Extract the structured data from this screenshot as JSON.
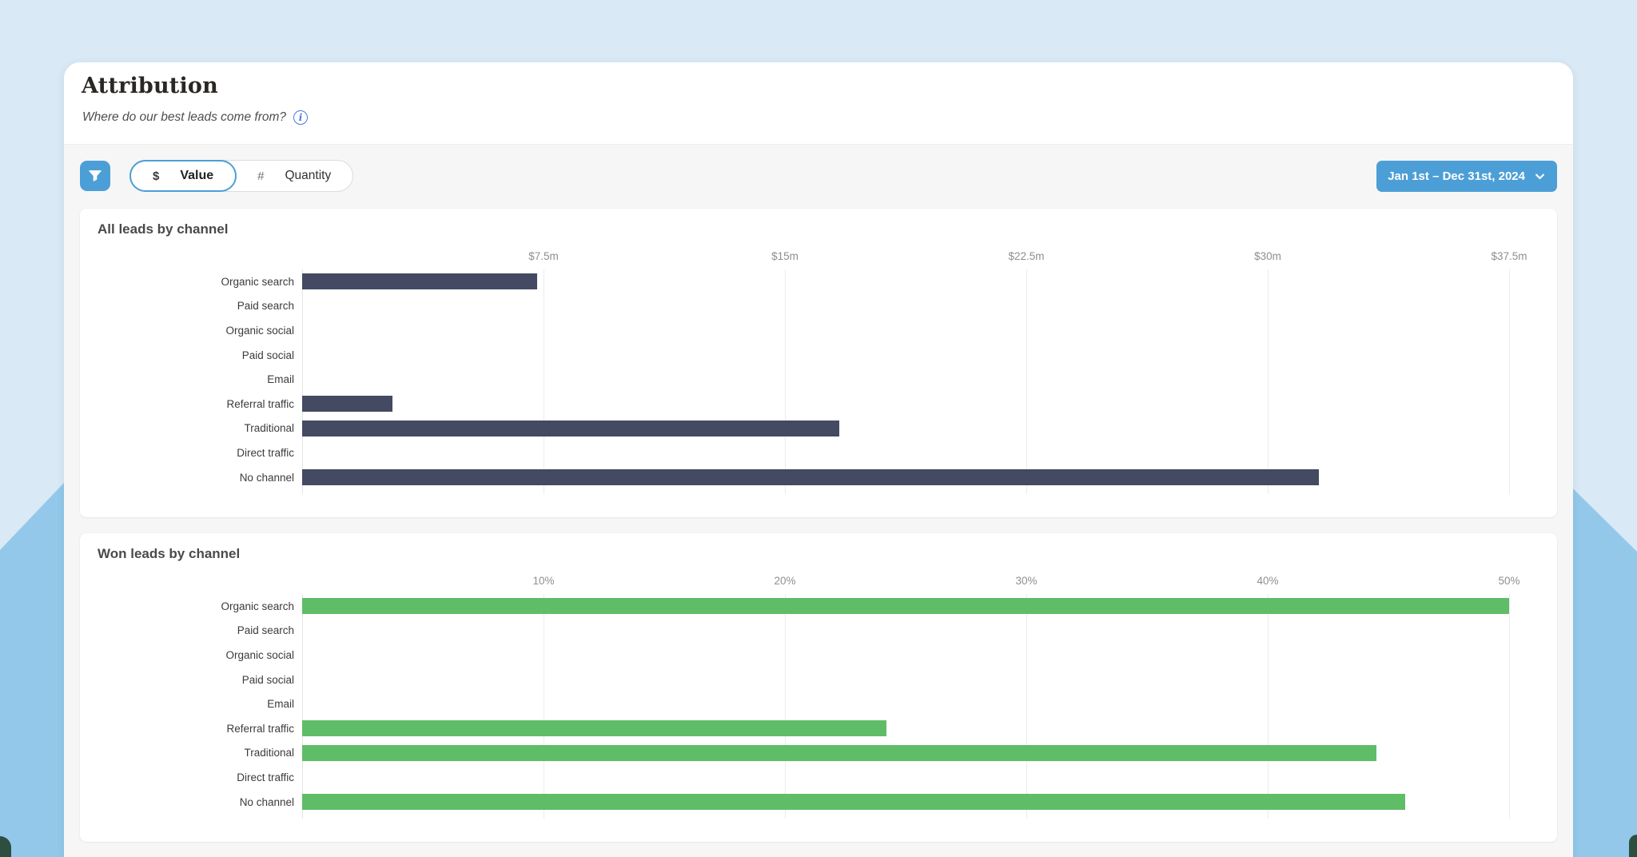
{
  "header": {
    "title": "Attribution",
    "subtitle": "Where do our best leads come from?",
    "info_icon": "info-circle-icon"
  },
  "toolbar": {
    "filter_icon": "funnel-icon",
    "metric_toggle": {
      "options": [
        {
          "symbol": "$",
          "label": "Value",
          "selected": true
        },
        {
          "symbol": "#",
          "label": "Quantity",
          "selected": false
        }
      ]
    },
    "date_range": {
      "label": "Jan 1st – Dec 31st, 2024",
      "icon": "chevron-down-icon"
    }
  },
  "colors": {
    "accent_blue": "#4c9fd6",
    "info_icon_blue": "#4b79d9",
    "page_background_blue": "#d9e9f5",
    "corner_shape_blue": "#93c8ea",
    "corner_shape_green": "#2e4f3f",
    "surface_gray": "#f6f6f7",
    "navy_bar": "#434a61",
    "green_bar": "#5fbd68"
  },
  "chart_data": [
    {
      "type": "bar",
      "orientation": "horizontal",
      "title": "All leads by channel",
      "categories": [
        "Organic search",
        "Paid search",
        "Organic social",
        "Paid social",
        "Email",
        "Referral traffic",
        "Traditional",
        "Direct traffic",
        "No channel"
      ],
      "values": [
        7.3,
        0,
        0,
        0,
        0,
        2.8,
        16.7,
        0,
        31.6
      ],
      "value_unit": "$ millions",
      "xlim": [
        0,
        37.5
      ],
      "tick_values": [
        7.5,
        15,
        22.5,
        30,
        37.5
      ],
      "tick_labels": [
        "$7.5m",
        "$15m",
        "$22.5m",
        "$30m",
        "$37.5m"
      ],
      "grid": true,
      "legend": false,
      "bar_color": "#434a61"
    },
    {
      "type": "bar",
      "orientation": "horizontal",
      "title": "Won leads by channel",
      "categories": [
        "Organic search",
        "Paid search",
        "Organic social",
        "Paid social",
        "Email",
        "Referral traffic",
        "Traditional",
        "Direct traffic",
        "No channel"
      ],
      "values": [
        50,
        0,
        0,
        0,
        0,
        24.2,
        44.5,
        0,
        45.7
      ],
      "value_unit": "percent",
      "xlim": [
        0,
        50
      ],
      "tick_values": [
        10,
        20,
        30,
        40,
        50
      ],
      "tick_labels": [
        "10%",
        "20%",
        "30%",
        "40%",
        "50%"
      ],
      "grid": true,
      "legend": false,
      "bar_color": "#5fbd68"
    }
  ]
}
